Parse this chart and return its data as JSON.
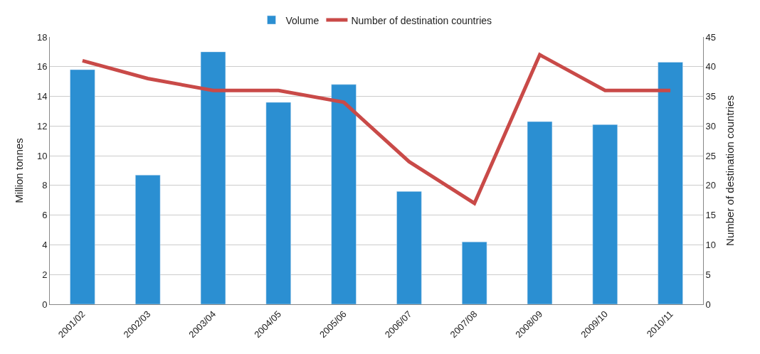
{
  "chart_data": {
    "type": "bar",
    "ylabel": "Million tonnes",
    "y2label": "Number of destination countries",
    "categories": [
      "2001/02",
      "2002/03",
      "2003/04",
      "2004/05",
      "2005/06",
      "2006/07",
      "2007/08",
      "2008/09",
      "2009/10",
      "2010/11"
    ],
    "series": [
      {
        "name": "Volume",
        "color": "#2b8fd2",
        "values": [
          15.8,
          8.7,
          17.0,
          13.6,
          14.8,
          7.6,
          4.2,
          12.3,
          12.1,
          16.3
        ]
      },
      {
        "name": "Number of destination countries",
        "type": "line",
        "axis": "y2",
        "color": "#c94a48",
        "values": [
          41,
          38,
          36,
          36,
          34,
          24,
          17,
          42,
          36,
          36
        ]
      }
    ],
    "ylim": [
      0,
      18
    ],
    "yticks": [
      0,
      2,
      4,
      6,
      8,
      10,
      12,
      14,
      16,
      18
    ],
    "y2lim": [
      0,
      45
    ],
    "y2ticks": [
      0,
      5,
      10,
      15,
      20,
      25,
      30,
      35,
      40,
      45
    ],
    "grid": "y",
    "legend": "top",
    "marker": "none",
    "line_style": "solid"
  }
}
